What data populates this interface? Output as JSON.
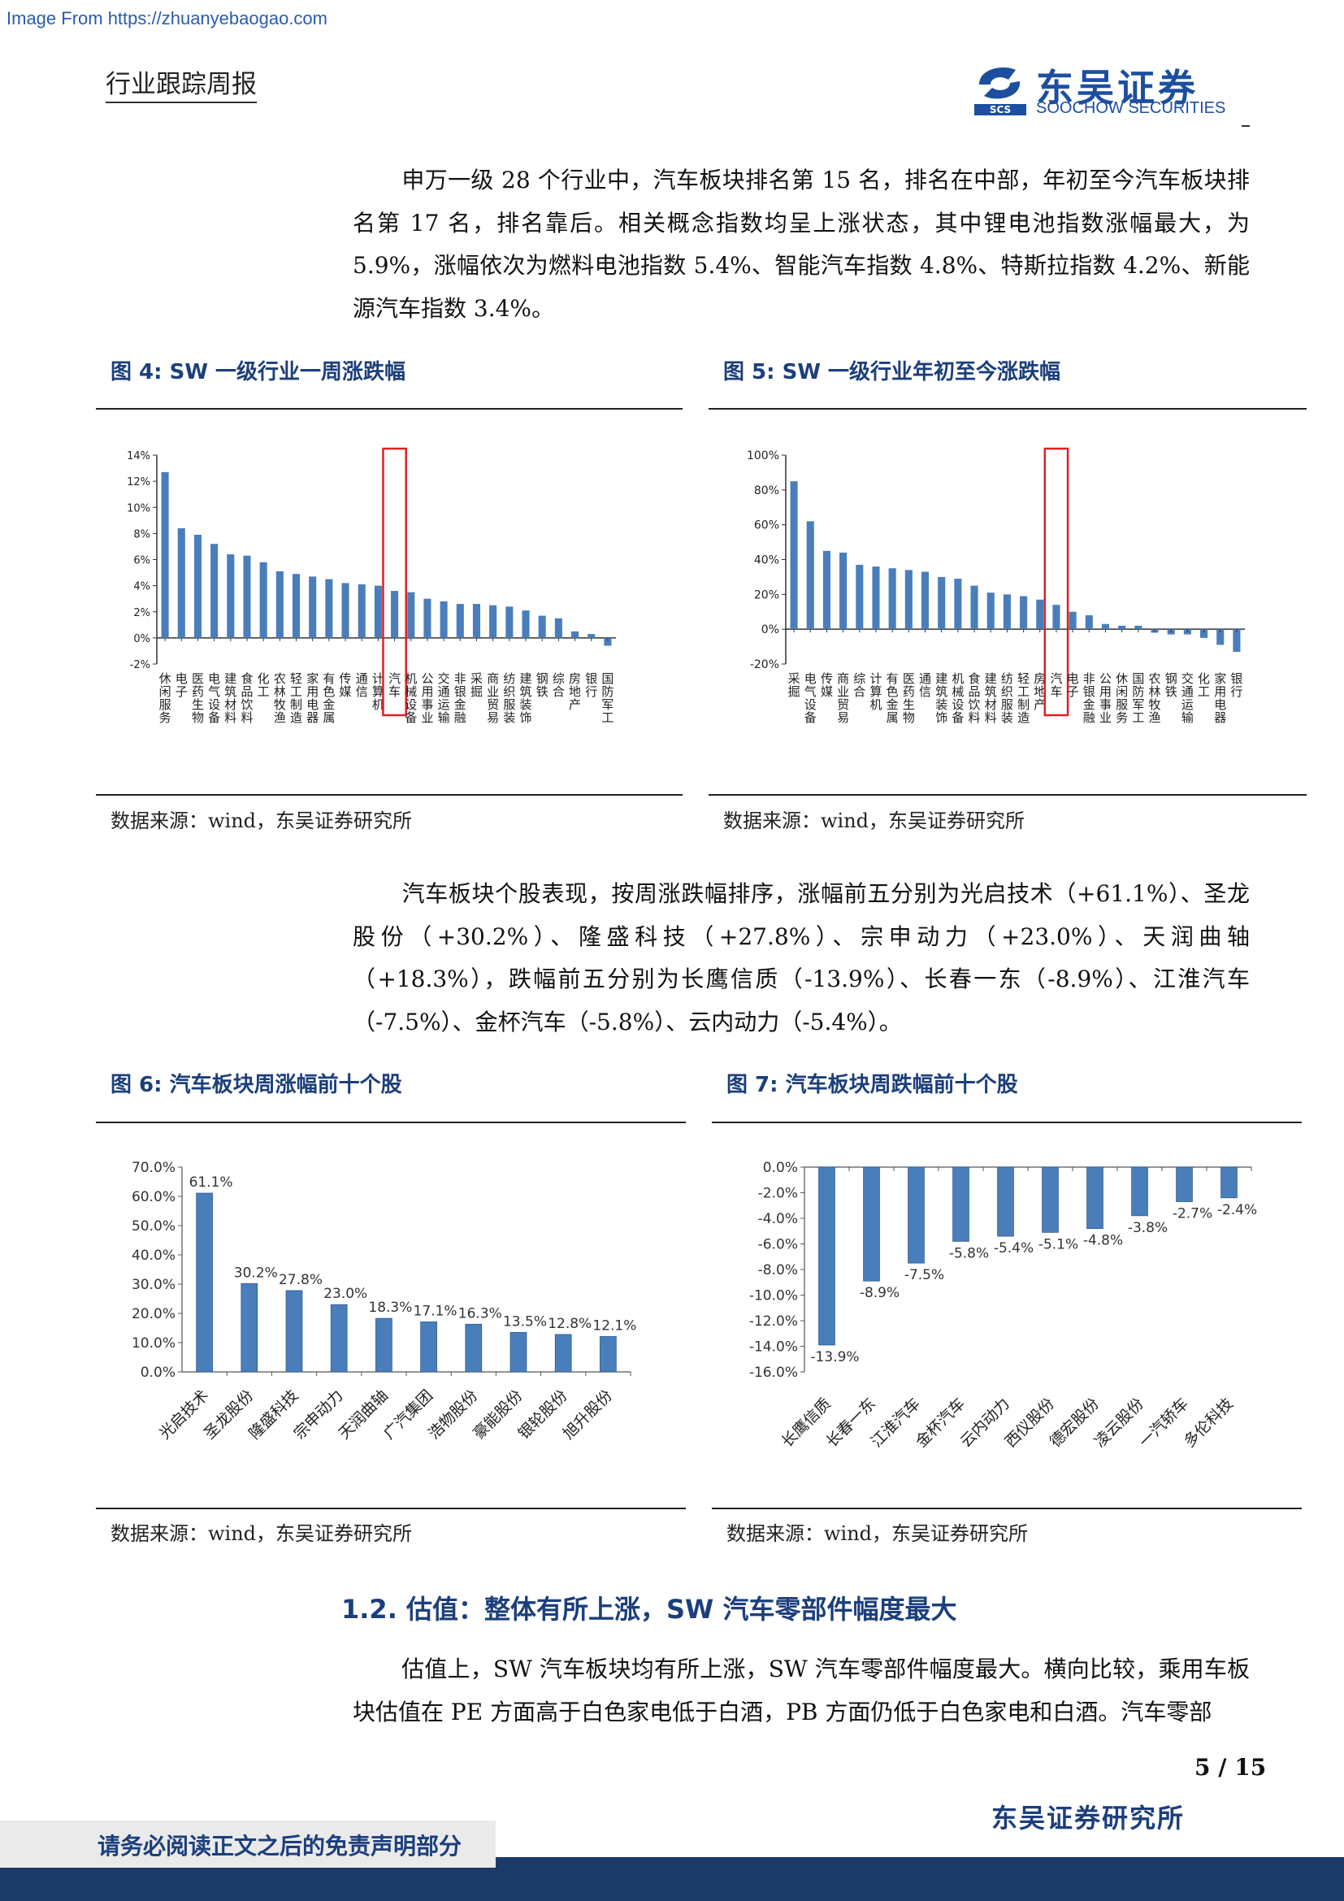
{
  "source_banner": "Image From https://zhuanyebaogao.com",
  "header": {
    "title": "行业跟踪周报",
    "logo_cn": "东吴证券",
    "logo_en": "SOOCHOW SECURITIES",
    "logo_mark_text": "SCS",
    "brand_color": "#1c4fa0"
  },
  "paragraphs": {
    "p1": "申万一级 28 个行业中，汽车板块排名第 15 名，排名在中部，年初至今汽车板块排名第 17 名，排名靠后。相关概念指数均呈上涨状态，其中锂电池指数涨幅最大，为 5.9%，涨幅依次为燃料电池指数 5.4%、智能汽车指数 4.8%、特斯拉指数 4.2%、新能源汽车指数 3.4%。",
    "p2": "汽车板块个股表现，按周涨跌幅排序，涨幅前五分别为光启技术（+61.1%）、圣龙股份（+30.2%）、隆盛科技（+27.8%）、宗申动力（+23.0%）、天润曲轴（+18.3%），跌幅前五分别为长鹰信质（-13.9%）、长春一东（-8.9%）、江淮汽车（-7.5%）、金杯汽车（-5.8%）、云内动力（-5.4%）。",
    "p3": "估值上，SW 汽车板块均有所上涨，SW 汽车零部件幅度最大。横向比较，乘用车板块估值在 PE 方面高于白色家电低于白酒，PB 方面仍低于白色家电和白酒。汽车零部"
  },
  "figures": {
    "fig4": {
      "caption": "图 4:  SW 一级行业一周涨跌幅",
      "source": "数据来源：wind，东吴证券研究所"
    },
    "fig5": {
      "caption": "图 5:  SW 一级行业年初至今涨跌幅",
      "source": "数据来源：wind，东吴证券研究所"
    },
    "fig6": {
      "caption": "图 6:  汽车板块周涨幅前十个股",
      "source": "数据来源：wind，东吴证券研究所"
    },
    "fig7": {
      "caption": "图 7:  汽车板块周跌幅前十个股",
      "source": "数据来源：wind，东吴证券研究所"
    }
  },
  "section": {
    "title": "1.2. 估值：整体有所上涨，SW 汽车零部件幅度最大"
  },
  "footer": {
    "page": "5 / 15",
    "firm": "东吴证券研究所",
    "disclaimer": "请务必阅读正文之后的免责声明部分"
  },
  "chart_data": [
    {
      "id": "fig4",
      "type": "bar",
      "bar_color": "#4a7ebb",
      "highlight_color": "#e02020",
      "highlight_category": "汽车",
      "ylim": [
        -2,
        14
      ],
      "yticks": [
        "14%",
        "12%",
        "10%",
        "8%",
        "6%",
        "4%",
        "2%",
        "0%",
        "-2%"
      ],
      "categories": [
        "休闲服务",
        "电子",
        "医药生物",
        "电气设备",
        "建筑材料",
        "食品饮料",
        "化工",
        "农林牧渔",
        "轻工制造",
        "家用电器",
        "有色金属",
        "传媒",
        "通信",
        "计算机",
        "汽车",
        "机械设备",
        "公用事业",
        "交通运输",
        "非银金融",
        "采掘",
        "商业贸易",
        "纺织服装",
        "建筑装饰",
        "钢铁",
        "综合",
        "房地产",
        "银行",
        "国防军工"
      ],
      "values": [
        12.7,
        8.4,
        7.9,
        7.2,
        6.4,
        6.3,
        5.8,
        5.1,
        4.9,
        4.7,
        4.5,
        4.2,
        4.1,
        4.0,
        3.6,
        3.5,
        3.0,
        2.8,
        2.6,
        2.6,
        2.5,
        2.4,
        2.1,
        1.7,
        1.5,
        0.5,
        0.3,
        -0.6
      ]
    },
    {
      "id": "fig5",
      "type": "bar",
      "bar_color": "#4a7ebb",
      "highlight_color": "#e02020",
      "highlight_category": "汽车",
      "ylim": [
        -20,
        100
      ],
      "yticks": [
        "100%",
        "80%",
        "60%",
        "40%",
        "20%",
        "0%",
        "-20%"
      ],
      "categories": [
        "采掘",
        "电气设备",
        "传媒",
        "商业贸易",
        "综合",
        "计算机",
        "有色金属",
        "医药生物",
        "通信",
        "建筑装饰",
        "机械设备",
        "食品饮料",
        "建筑材料",
        "纺织服装",
        "轻工制造",
        "房地产",
        "汽车",
        "电子",
        "非银金融",
        "公用事业",
        "休闲服务",
        "国防军工",
        "农林牧渔",
        "钢铁",
        "交通运输",
        "化工",
        "家用电器",
        "银行"
      ],
      "values": [
        85,
        62,
        45,
        44,
        37,
        36,
        35,
        34,
        33,
        30,
        29,
        25,
        21,
        20,
        19,
        17,
        14,
        10,
        8,
        3,
        2,
        2,
        -2,
        -3,
        -3,
        -5,
        -9,
        -13
      ]
    },
    {
      "id": "fig6",
      "type": "bar",
      "bar_color": "#4a7ebb",
      "ylim": [
        0,
        70
      ],
      "yticks": [
        "70.0%",
        "60.0%",
        "50.0%",
        "40.0%",
        "30.0%",
        "20.0%",
        "10.0%",
        "0.0%"
      ],
      "categories": [
        "光启技术",
        "圣龙股份",
        "隆盛科技",
        "宗申动力",
        "天润曲轴",
        "广汽集团",
        "浩物股份",
        "豪能股份",
        "银轮股份",
        "旭升股份"
      ],
      "values": [
        61.1,
        30.2,
        27.8,
        23.0,
        18.3,
        17.1,
        16.3,
        13.5,
        12.8,
        12.1
      ],
      "labels": [
        "61.1%",
        "30.2%",
        "27.8%",
        "23.0%",
        "18.3%",
        "17.1%",
        "16.3%",
        "13.5%",
        "12.8%",
        "12.1%"
      ]
    },
    {
      "id": "fig7",
      "type": "bar",
      "bar_color": "#4a7ebb",
      "ylim": [
        -16,
        0
      ],
      "yticks": [
        "0.0%",
        "-2.0%",
        "-4.0%",
        "-6.0%",
        "-8.0%",
        "-10.0%",
        "-12.0%",
        "-14.0%",
        "-16.0%"
      ],
      "categories": [
        "长鹰信质",
        "长春一东",
        "江淮汽车",
        "金杯汽车",
        "云内动力",
        "西仪股份",
        "德宏股份",
        "凌云股份",
        "一汽轿车",
        "多伦科技"
      ],
      "values": [
        -13.9,
        -8.9,
        -7.5,
        -5.8,
        -5.4,
        -5.1,
        -4.8,
        -3.8,
        -2.7,
        -2.4
      ],
      "labels": [
        "-13.9%",
        "-8.9%",
        "-7.5%",
        "-5.8%",
        "-5.4%",
        "-5.1%",
        "-4.8%",
        "-3.8%",
        "-2.7%",
        "-2.4%"
      ]
    }
  ]
}
